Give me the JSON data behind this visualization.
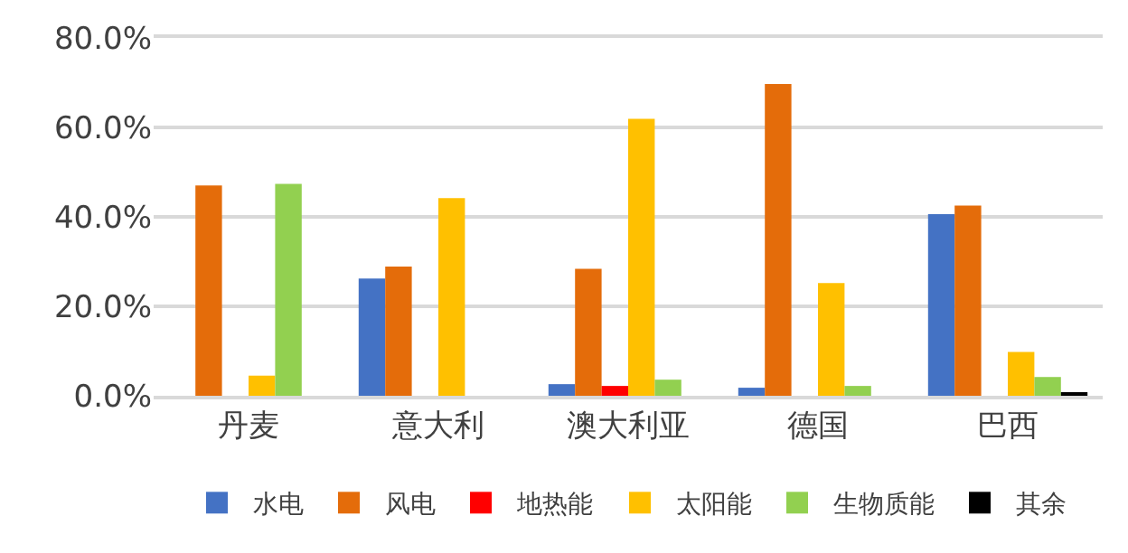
{
  "chart_data": {
    "type": "bar",
    "categories": [
      "丹麦",
      "意大利",
      "澳大利亚",
      "德国",
      "巴西"
    ],
    "series": [
      {
        "name": "水电",
        "color": "#4472c4",
        "values": [
          null,
          26.2,
          2.6,
          1.8,
          40.6
        ]
      },
      {
        "name": "风电",
        "color": "#e46c0a",
        "values": [
          47.0,
          28.9,
          28.4,
          69.7,
          42.5
        ]
      },
      {
        "name": "地热能",
        "color": "#ff0000",
        "values": [
          null,
          null,
          2.2,
          null,
          null
        ]
      },
      {
        "name": "太阳能",
        "color": "#ffc000",
        "values": [
          4.5,
          44.2,
          61.9,
          25.2,
          9.8
        ]
      },
      {
        "name": "生物质能",
        "color": "#92d050",
        "values": [
          47.4,
          null,
          3.6,
          2.2,
          4.2
        ]
      },
      {
        "name": "其余",
        "color": "#000000",
        "values": [
          null,
          null,
          null,
          null,
          0.8
        ]
      }
    ],
    "ylim": [
      0,
      80
    ],
    "yticks": [
      {
        "value": 0,
        "label": "0.0%"
      },
      {
        "value": 20,
        "label": "20.0%"
      },
      {
        "value": 40,
        "label": "40.0%"
      },
      {
        "value": 60,
        "label": "60.0%"
      },
      {
        "value": 80,
        "label": "80.0%"
      }
    ],
    "grid": "y",
    "legend": "bottom"
  }
}
